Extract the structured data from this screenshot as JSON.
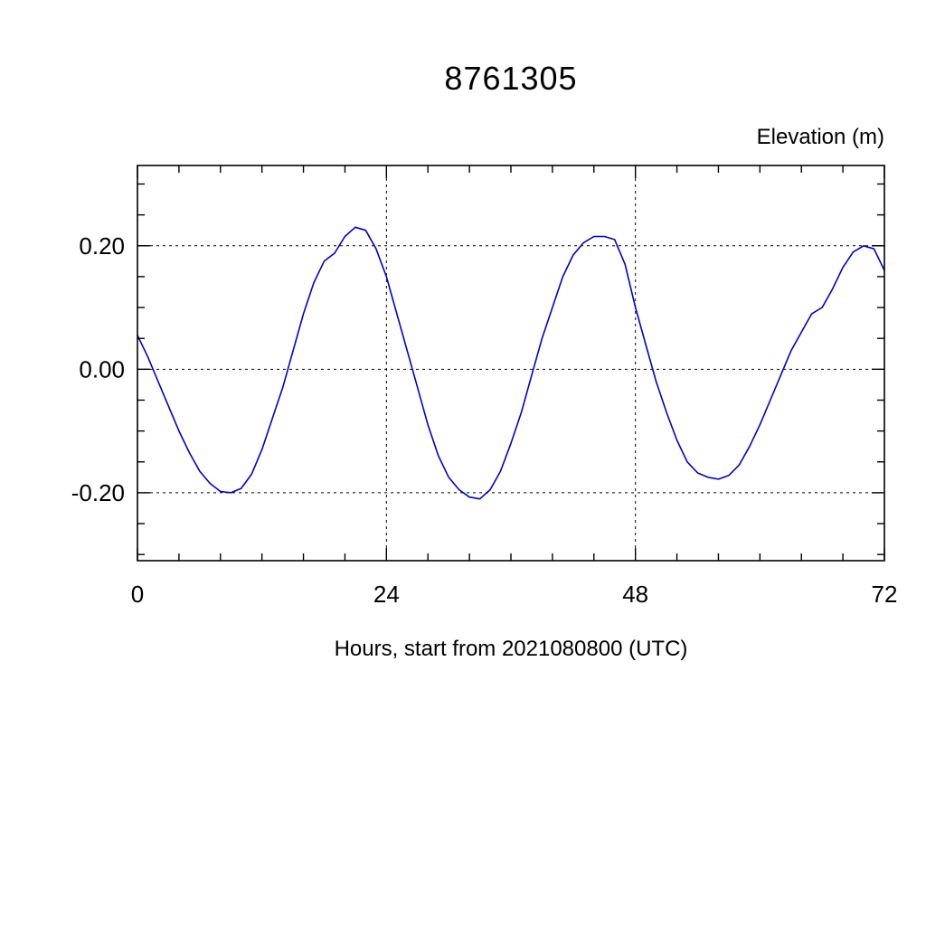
{
  "chart": {
    "title": "8761305",
    "right_axis_label": "Elevation (m)",
    "x_axis_title": "Hours, start from 2021080800 (UTC)",
    "line_color": "#0000cc",
    "frame_color": "#000000",
    "grid_color": "#000000"
  },
  "chart_data": {
    "type": "line",
    "title": "8761305",
    "xlabel": "Hours, start from 2021080800 (UTC)",
    "ylabel": "Elevation (m)",
    "legend": null,
    "grid": true,
    "xlim": [
      0,
      72
    ],
    "ylim": [
      -0.31,
      0.33
    ],
    "x_major_ticks": [
      0,
      24,
      48,
      72
    ],
    "x_tick_labels": [
      "0",
      "24",
      "48",
      "72"
    ],
    "x_minor_step": 4,
    "y_major_ticks": [
      -0.2,
      0.0,
      0.2
    ],
    "y_tick_labels": [
      "-0.20",
      "0.00",
      "0.20"
    ],
    "y_minor_step": 0.05,
    "grid_x": [
      24,
      48
    ],
    "grid_y": [
      -0.2,
      0.0,
      0.2
    ],
    "series_name": "Elevation (m)",
    "x": [
      0,
      1,
      2,
      3,
      4,
      5,
      6,
      7,
      8,
      9,
      10,
      11,
      12,
      13,
      14,
      15,
      16,
      17,
      18,
      19,
      20,
      21,
      22,
      23,
      24,
      25,
      26,
      27,
      28,
      29,
      30,
      31,
      32,
      33,
      34,
      35,
      36,
      37,
      38,
      39,
      40,
      41,
      42,
      43,
      44,
      45,
      46,
      47,
      48,
      49,
      50,
      51,
      52,
      53,
      54,
      55,
      56,
      57,
      58,
      59,
      60,
      61,
      62,
      63,
      64,
      65,
      66,
      67,
      68,
      69,
      70,
      71,
      72
    ],
    "values": [
      0.055,
      0.02,
      -0.02,
      -0.06,
      -0.1,
      -0.135,
      -0.165,
      -0.185,
      -0.198,
      -0.2,
      -0.193,
      -0.17,
      -0.13,
      -0.08,
      -0.03,
      0.03,
      0.09,
      0.14,
      0.175,
      0.188,
      0.215,
      0.23,
      0.225,
      0.195,
      0.15,
      0.09,
      0.03,
      -0.03,
      -0.09,
      -0.14,
      -0.175,
      -0.195,
      -0.207,
      -0.21,
      -0.195,
      -0.165,
      -0.12,
      -0.07,
      -0.01,
      0.05,
      0.1,
      0.15,
      0.185,
      0.205,
      0.215,
      0.215,
      0.21,
      0.17,
      0.1,
      0.04,
      -0.02,
      -0.07,
      -0.115,
      -0.15,
      -0.168,
      -0.175,
      -0.178,
      -0.172,
      -0.155,
      -0.125,
      -0.09,
      -0.05,
      -0.01,
      0.03,
      0.06,
      0.09,
      0.1,
      0.13,
      0.165,
      0.19,
      0.2,
      0.195,
      0.16
    ]
  }
}
